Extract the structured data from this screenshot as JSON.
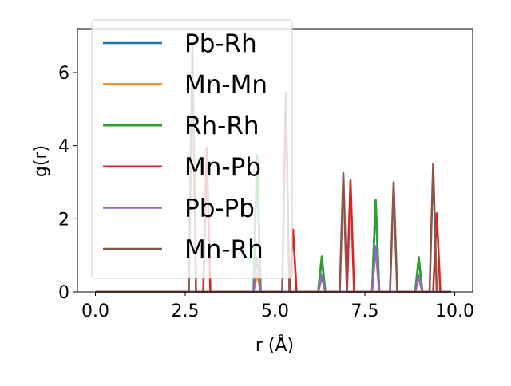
{
  "chart_data": {
    "type": "line",
    "title": "",
    "xlabel": "r (Å)",
    "ylabel": "g(r)",
    "xlim": [
      -0.5,
      10.5
    ],
    "ylim": [
      0,
      7.2
    ],
    "x_ticks": [
      0.0,
      2.5,
      5.0,
      7.5,
      10.0
    ],
    "x_tick_labels": [
      "0.0",
      "2.5",
      "5.0",
      "7.5",
      "10.0"
    ],
    "y_ticks": [
      0,
      2,
      4,
      6
    ],
    "y_tick_labels": [
      "0",
      "2",
      "4",
      "6"
    ],
    "grid": false,
    "legend_position": "top-left",
    "x_range": [
      0.0,
      9.9
    ],
    "series": [
      {
        "name": "Pb-Rh",
        "color": "#1f77b4",
        "peaks": [
          [
            4.5,
            3.7
          ],
          [
            6.3,
            0.9
          ],
          [
            7.8,
            2.5
          ],
          [
            9.0,
            0.9
          ]
        ]
      },
      {
        "name": "Mn-Mn",
        "color": "#ff7f0e",
        "peaks": [
          [
            4.5,
            0.5
          ],
          [
            6.3,
            0.4
          ],
          [
            7.8,
            1.2
          ],
          [
            9.0,
            0.4
          ]
        ]
      },
      {
        "name": "Rh-Rh",
        "color": "#2ca02c",
        "peaks": [
          [
            4.5,
            3.75
          ],
          [
            6.3,
            0.97
          ],
          [
            7.8,
            2.52
          ],
          [
            9.0,
            0.95
          ]
        ]
      },
      {
        "name": "Mn-Pb",
        "color": "#d62728",
        "peaks": [
          [
            3.1,
            3.95
          ],
          [
            5.5,
            1.7
          ],
          [
            7.1,
            3.05
          ],
          [
            9.5,
            2.15
          ]
        ]
      },
      {
        "name": "Pb-Pb",
        "color": "#9467bd",
        "peaks": [
          [
            4.5,
            0.95
          ],
          [
            6.3,
            0.45
          ],
          [
            7.8,
            1.25
          ],
          [
            9.0,
            0.45
          ]
        ]
      },
      {
        "name": "Mn-Rh",
        "color": "#8c564b",
        "peaks": [
          [
            2.7,
            6.8
          ],
          [
            5.3,
            5.45
          ],
          [
            6.9,
            3.25
          ],
          [
            8.3,
            3.0
          ],
          [
            9.4,
            3.5
          ]
        ]
      }
    ]
  }
}
